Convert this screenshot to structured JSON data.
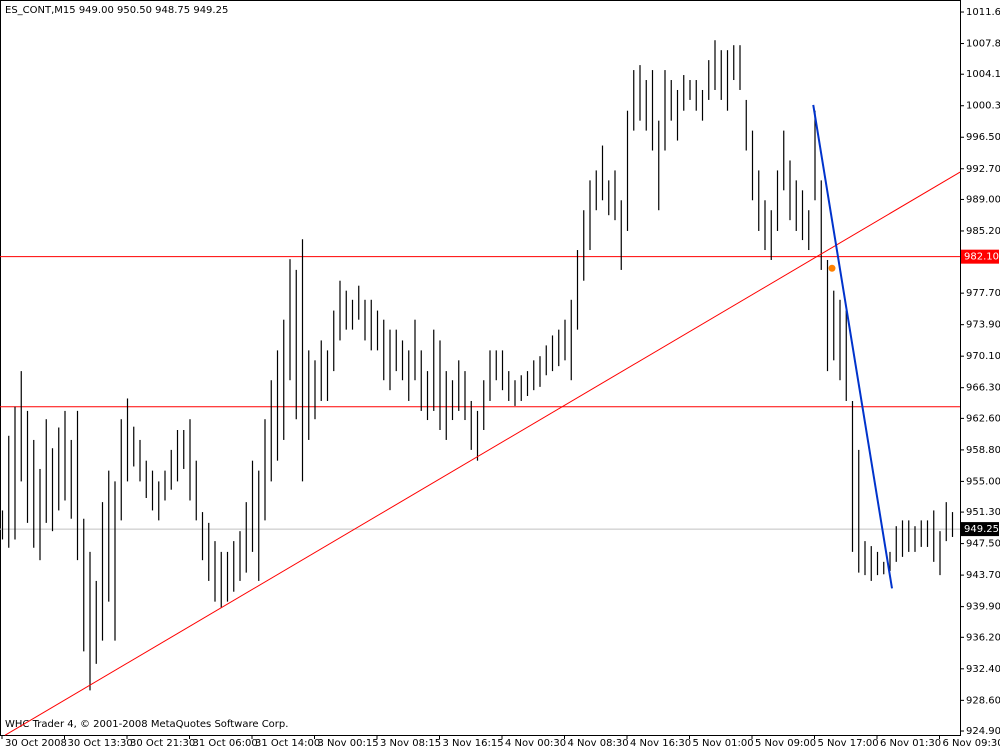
{
  "chart_data": {
    "type": "ohlc",
    "title": "ES_CONT,M15  949.00 950.50 948.75 949.25",
    "footer": "WHC Trader 4, © 2001-2008 MetaQuotes Software Corp.",
    "color": "#000000",
    "x": [
      "30 Oct 2008",
      null,
      null,
      null,
      null,
      null,
      null,
      null,
      null,
      null,
      "30 Oct 13:30",
      null,
      null,
      null,
      null,
      null,
      null,
      null,
      null,
      null,
      "30 Oct 21:30",
      null,
      null,
      null,
      null,
      null,
      null,
      null,
      null,
      null,
      "31 Oct 06:00",
      null,
      null,
      null,
      null,
      null,
      null,
      null,
      null,
      null,
      "31 Oct 14:00",
      null,
      null,
      null,
      null,
      null,
      null,
      null,
      null,
      null,
      "3 Nov 00:15",
      null,
      null,
      null,
      null,
      null,
      null,
      null,
      null,
      null,
      "3 Nov 08:15",
      null,
      null,
      null,
      null,
      null,
      null,
      null,
      null,
      null,
      "3 Nov 16:15",
      null,
      null,
      null,
      null,
      null,
      null,
      null,
      null,
      null,
      "4 Nov 00:30",
      null,
      null,
      null,
      null,
      null,
      null,
      null,
      null,
      null,
      "4 Nov 08:30",
      null,
      null,
      null,
      null,
      null,
      null,
      null,
      null,
      null,
      "4 Nov 16:30",
      null,
      null,
      null,
      null,
      null,
      null,
      null,
      null,
      null,
      "5 Nov 01:00",
      null,
      null,
      null,
      null,
      null,
      null,
      null,
      null,
      null,
      "5 Nov 09:00",
      null,
      null,
      null,
      null,
      null,
      null,
      null,
      null,
      null,
      "5 Nov 17:00",
      null,
      null,
      null,
      null,
      null,
      null,
      null,
      null,
      null,
      "6 Nov 01:30",
      null,
      null,
      null,
      null,
      null,
      null,
      null,
      null,
      null,
      "6 Nov 09:30",
      null,
      null
    ],
    "high": [
      951.5,
      960.5,
      964,
      968.3,
      963.5,
      960,
      956.5,
      962.5,
      959,
      961.5,
      963.5,
      960,
      963.5,
      950.5,
      946.5,
      943,
      952.5,
      956.3,
      955,
      962.5,
      965,
      961.6,
      960,
      957.5,
      956.3,
      955,
      956.3,
      958.8,
      961.2,
      961.2,
      962.5,
      957.5,
      951.3,
      950,
      947.8,
      946.5,
      946.5,
      947.8,
      949,
      952.5,
      957.5,
      956.3,
      962.5,
      967.2,
      970.8,
      974.5,
      981.8,
      980.5,
      984.2,
      970.8,
      969.6,
      972,
      970.8,
      975.6,
      979.2,
      978,
      976.9,
      978.6,
      976.9,
      976.9,
      975.6,
      974.5,
      973.3,
      973.3,
      972,
      970.8,
      974.5,
      970.8,
      968.3,
      973.3,
      972,
      968.3,
      967.2,
      969.6,
      968.3,
      964.7,
      963.5,
      967.2,
      970.8,
      970.8,
      970.8,
      968.3,
      967.2,
      967.8,
      968.3,
      969.6,
      970.1,
      971.4,
      972.6,
      973.3,
      974.5,
      976.9,
      982.9,
      987.7,
      991.3,
      992.5,
      995.5,
      991.3,
      992.5,
      988.9,
      999.7,
      1004.6,
      1005.2,
      1003.4,
      1004.6,
      998.5,
      1004.6,
      1003.4,
      1002.2,
      1004,
      1003.4,
      1003.4,
      1002.2,
      1005.8,
      1008.2,
      1007,
      1007,
      1007.6,
      1007.6,
      1001,
      997.3,
      992.5,
      988.9,
      987.7,
      992.5,
      997.3,
      993.7,
      991.3,
      990.1,
      987.7,
      999.7,
      991.3,
      981.7,
      978,
      976.9,
      975.6,
      964.7,
      958.8,
      947.8,
      947.2,
      946.5,
      945.3,
      946.5,
      949.6,
      950.3,
      950.3,
      949.6,
      950.3,
      950.3,
      951.5,
      949,
      952.5,
      951.3
    ],
    "low": [
      948,
      947,
      948,
      955,
      950,
      947,
      945.5,
      950,
      949,
      951.5,
      952.7,
      950.5,
      945.5,
      934.5,
      929.8,
      933,
      935.8,
      940.5,
      935.8,
      950.3,
      955,
      956.8,
      955,
      953,
      951.5,
      950.3,
      952.7,
      954,
      955,
      956.5,
      952.7,
      950.3,
      945.5,
      943,
      940.5,
      939.8,
      940.5,
      941.7,
      943,
      944,
      946.5,
      943,
      950.3,
      955,
      957.5,
      960,
      967.2,
      962.5,
      955,
      960,
      962.5,
      964.7,
      964.7,
      968.3,
      972,
      973.3,
      973.3,
      974.5,
      972,
      970.8,
      970.8,
      967.2,
      966,
      968.3,
      967.2,
      964.7,
      967.2,
      963.5,
      962.4,
      963.5,
      961.2,
      960,
      962.4,
      963.5,
      962.4,
      958.8,
      957.5,
      961.2,
      964.7,
      967.2,
      966,
      964.7,
      964.1,
      964.7,
      965.3,
      966,
      966.4,
      967.8,
      968.3,
      968.9,
      969.6,
      967.2,
      973.3,
      979.2,
      982.9,
      987.7,
      988.9,
      987.1,
      986.5,
      980.5,
      985.2,
      997.3,
      998.5,
      997.3,
      994.9,
      987.7,
      994.9,
      998.5,
      996.1,
      999.7,
      1001,
      999.7,
      998.5,
      1001,
      1002.2,
      1001,
      999.7,
      1003.4,
      1002.2,
      994.9,
      988.9,
      985.2,
      982.9,
      981.7,
      985.2,
      990.1,
      986.5,
      985.2,
      984.1,
      982.9,
      988.9,
      980.5,
      968.3,
      969.6,
      967.2,
      964.7,
      946.5,
      944,
      943.7,
      943,
      943.7,
      943.8,
      944.2,
      945.3,
      945.9,
      946.5,
      946.5,
      947.1,
      947.1,
      945.3,
      943.7,
      947.8,
      948.3
    ],
    "ylim": [
      924.42,
      1013.05
    ],
    "yticks": [
      {
        "value": 1011.6,
        "label": "1011.60"
      },
      {
        "value": 1007.8,
        "label": "1007.80"
      },
      {
        "value": 1004.1,
        "label": "1004.10"
      },
      {
        "value": 1000.3,
        "label": "1000.30"
      },
      {
        "value": 996.5,
        "label": "996.50"
      },
      {
        "value": 992.7,
        "label": "992.70"
      },
      {
        "value": 989,
        "label": "989.00"
      },
      {
        "value": 985.2,
        "label": "985.20"
      },
      {
        "value": 977.7,
        "label": "977.70"
      },
      {
        "value": 973.9,
        "label": "973.90"
      },
      {
        "value": 970.1,
        "label": "970.10"
      },
      {
        "value": 966.3,
        "label": "966.30"
      },
      {
        "value": 962.6,
        "label": "962.60"
      },
      {
        "value": 958.8,
        "label": "958.80"
      },
      {
        "value": 955,
        "label": "955.00"
      },
      {
        "value": 951.3,
        "label": "951.30"
      },
      {
        "value": 947.5,
        "label": "947.50"
      },
      {
        "value": 943.7,
        "label": "943.70"
      },
      {
        "value": 939.9,
        "label": "939.90"
      },
      {
        "value": 936.2,
        "label": "936.20"
      },
      {
        "value": 932.4,
        "label": "932.40"
      },
      {
        "value": 928.6,
        "label": "928.60"
      },
      {
        "value": 924.9,
        "label": "924.90"
      }
    ],
    "hlines": [
      {
        "value": 982.1,
        "label": "982.10",
        "color": "#ff0000"
      },
      {
        "value": 964,
        "color": "#ff0000"
      },
      {
        "value": 949.25,
        "label": "949.25",
        "color": "#c0c0c0"
      }
    ],
    "trendlines": [
      {
        "x": [
          0.5,
          153.3
        ],
        "values": [
          924.4,
          992.3
        ],
        "color": "#ff0000"
      },
      {
        "x": [
          129.8,
          142.4
        ],
        "values": [
          1000.4,
          942.1
        ],
        "color": "#0033cc"
      }
    ],
    "points": [
      {
        "x": 132.8,
        "value": 980.7,
        "color": "#ff8000"
      }
    ]
  }
}
